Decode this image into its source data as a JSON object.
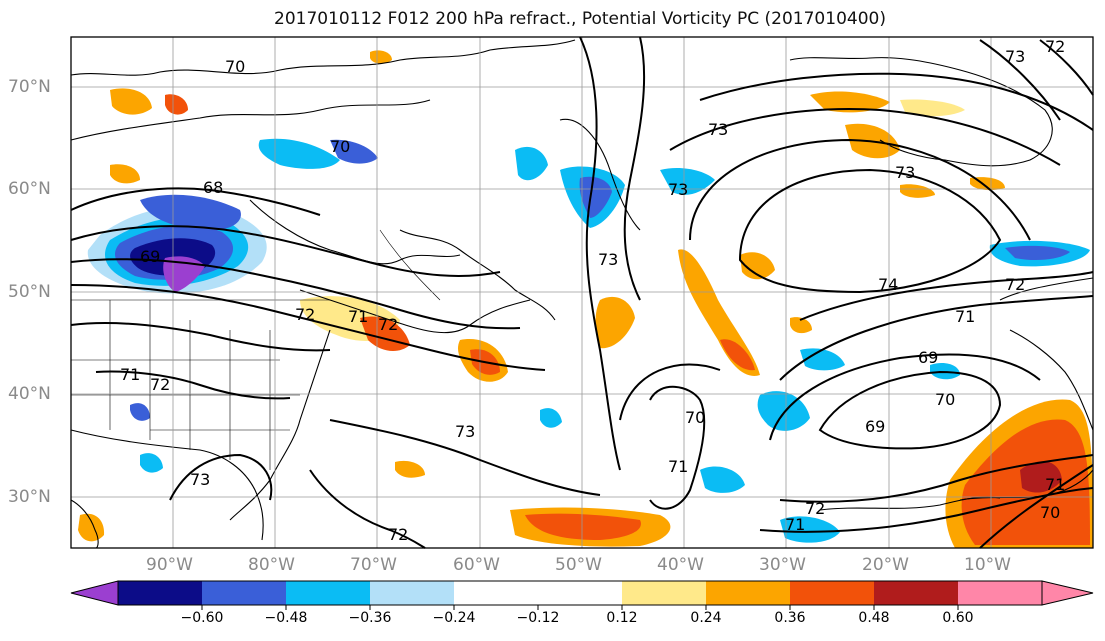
{
  "title": "2017010112 F012 200 hPa refract., Potential Vorticity PC (2017010400)",
  "map": {
    "lat_labels": [
      "70°N",
      "60°N",
      "50°N",
      "40°N",
      "30°N"
    ],
    "lon_labels": [
      "90°W",
      "80°W",
      "70°W",
      "60°W",
      "50°W",
      "40°W",
      "30°W",
      "20°W",
      "10°W"
    ],
    "contour_labels": [
      "72",
      "73",
      "70",
      "68",
      "69",
      "73",
      "73",
      "73",
      "73",
      "74",
      "72",
      "71",
      "69",
      "70",
      "69",
      "72",
      "71",
      "72",
      "72",
      "71",
      "70",
      "73",
      "71",
      "72",
      "70",
      "73",
      "71",
      "72",
      "71",
      "70"
    ]
  },
  "colorbar": {
    "labels": [
      "−0.60",
      "−0.48",
      "−0.36",
      "−0.24",
      "−0.12",
      "0.12",
      "0.24",
      "0.36",
      "0.48",
      "0.60"
    ],
    "colors": [
      "#9b3fd0",
      "#0c0c88",
      "#3a5fd8",
      "#0bbcf4",
      "#b3e0f8",
      "#ffffff",
      "#ffe98a",
      "#fca500",
      "#f2520a",
      "#b01c1c",
      "#ff86a8"
    ]
  },
  "colors": {
    "neg_strong": "#9b3fd0",
    "neg_darkblue": "#0c0c88",
    "neg_blue": "#3a5fd8",
    "neg_cyan": "#0bbcf4",
    "neg_light": "#b3e0f8",
    "pos_yellow": "#ffe98a",
    "pos_orange": "#fca500",
    "pos_red": "#f2520a"
  }
}
